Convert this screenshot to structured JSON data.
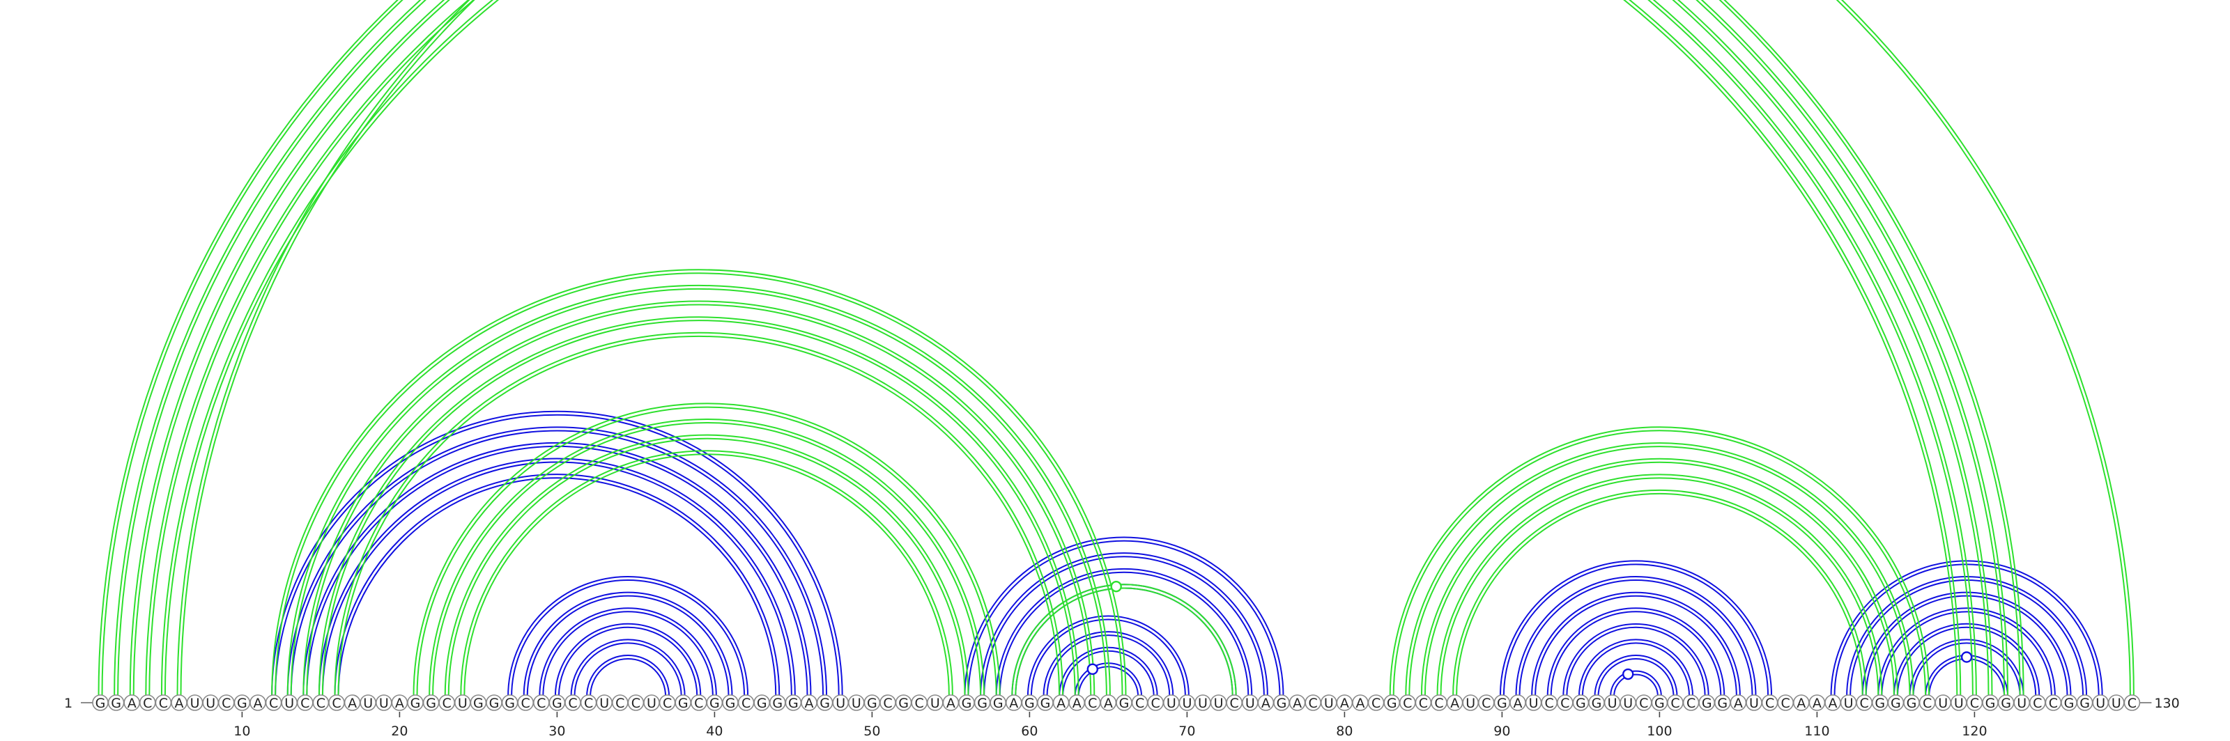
{
  "sequence": "GGACCAUUCGACUCCCAUUAGGCUGGGCCGCCUCCUCGCGGCGGGAGUUGCGCUAGGGAGGAACAGCCUUUUCUAGACUAACGCCCAUCGAUCCGGUUCGCCGGAUCCAAAUCGGGCUUCGGUCCGGUUC",
  "start_label": "1",
  "end_label": "130",
  "ticks": [
    10,
    20,
    30,
    40,
    50,
    60,
    70,
    80,
    90,
    100,
    110,
    120
  ],
  "colors": {
    "structure_a": "#1010e0",
    "structure_b": "#2de02d"
  },
  "pairs_blue": [
    [
      12,
      48
    ],
    [
      13,
      47
    ],
    [
      14,
      46
    ],
    [
      15,
      45
    ],
    [
      16,
      44
    ],
    [
      27,
      42
    ],
    [
      28,
      41
    ],
    [
      29,
      40
    ],
    [
      30,
      39
    ],
    [
      31,
      38
    ],
    [
      32,
      37
    ],
    [
      56,
      76
    ],
    [
      57,
      75
    ],
    [
      58,
      74
    ],
    [
      59,
      73
    ],
    [
      60,
      70
    ],
    [
      61,
      69
    ],
    [
      62,
      68
    ],
    [
      63,
      67
    ],
    [
      90,
      107
    ],
    [
      91,
      106
    ],
    [
      92,
      105
    ],
    [
      93,
      104
    ],
    [
      94,
      103
    ],
    [
      95,
      102
    ],
    [
      96,
      101
    ],
    [
      97,
      100
    ],
    [
      111,
      128
    ],
    [
      112,
      127
    ],
    [
      113,
      126
    ],
    [
      114,
      125
    ],
    [
      115,
      124
    ],
    [
      116,
      123
    ],
    [
      117,
      122
    ]
  ],
  "pairs_green": [
    [
      1,
      123
    ],
    [
      2,
      122
    ],
    [
      3,
      121
    ],
    [
      4,
      120
    ],
    [
      5,
      119
    ],
    [
      6,
      130
    ],
    [
      12,
      66
    ],
    [
      13,
      65
    ],
    [
      14,
      64
    ],
    [
      15,
      63
    ],
    [
      16,
      62
    ],
    [
      21,
      58
    ],
    [
      22,
      57
    ],
    [
      23,
      56
    ],
    [
      24,
      55
    ],
    [
      59,
      73
    ],
    [
      83,
      117
    ],
    [
      84,
      116
    ],
    [
      85,
      115
    ],
    [
      86,
      114
    ],
    [
      87,
      113
    ]
  ],
  "unpaired_markers_blue": [
    64,
    98,
    119.5
  ],
  "unpaired_markers_green": [
    65.5
  ]
}
